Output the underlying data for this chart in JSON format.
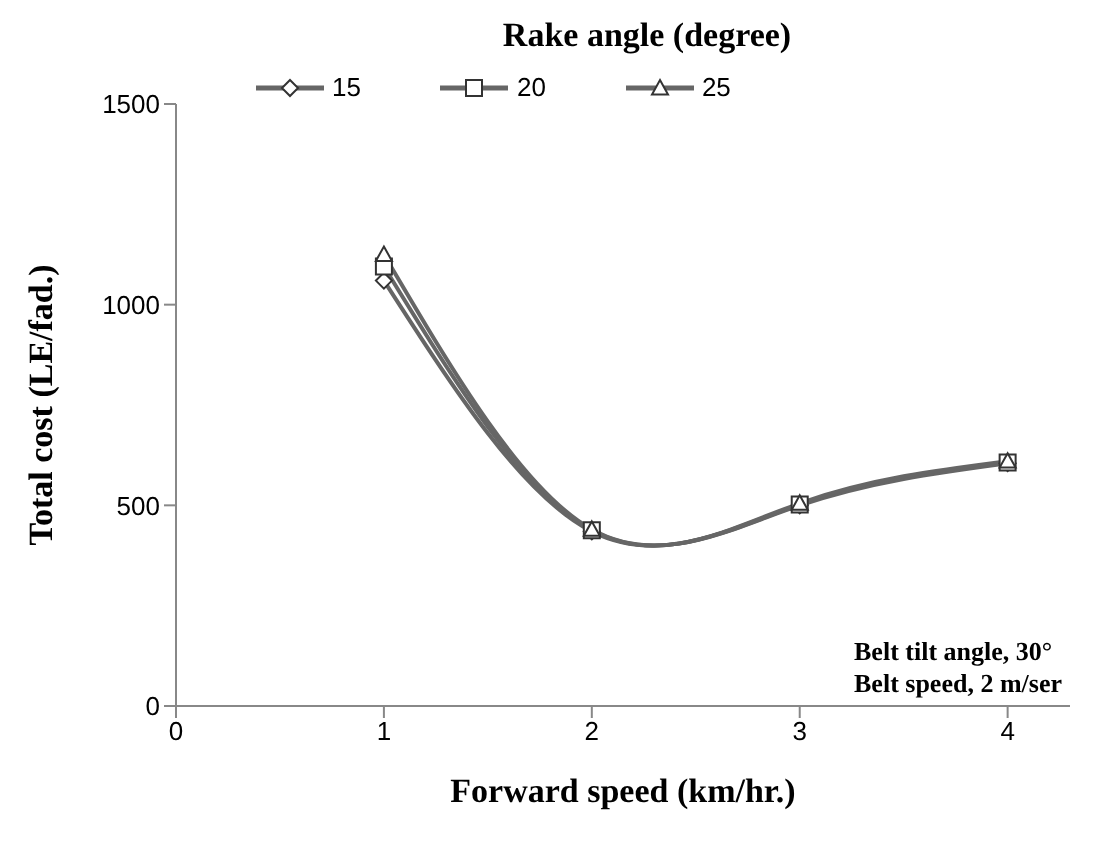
{
  "chart_data": {
    "type": "line",
    "legend_title": "Rake angle (degree)",
    "xlabel": "Forward speed (km/hr.)",
    "ylabel": "Total cost (LE/fad.)",
    "x": [
      1,
      2,
      3,
      4
    ],
    "series": [
      {
        "name": "15",
        "color": "#666666",
        "marker": "diamond",
        "values": [
          1060,
          435,
          500,
          605
        ]
      },
      {
        "name": "20",
        "color": "#666666",
        "marker": "square",
        "values": [
          1095,
          438,
          502,
          607
        ]
      },
      {
        "name": "25",
        "color": "#666666",
        "marker": "triangle",
        "values": [
          1125,
          440,
          505,
          610
        ]
      }
    ],
    "xlim": [
      0,
      4.3
    ],
    "xticks": [
      0,
      1,
      2,
      3,
      4
    ],
    "ylim": [
      0,
      1500
    ],
    "yticks": [
      0,
      500,
      1000,
      1500
    ],
    "grid": false,
    "legend": "top left",
    "line_style": "solid",
    "annotations": [
      "Belt tilt angle, 30°",
      "Belt speed, 2 m/ser"
    ]
  }
}
